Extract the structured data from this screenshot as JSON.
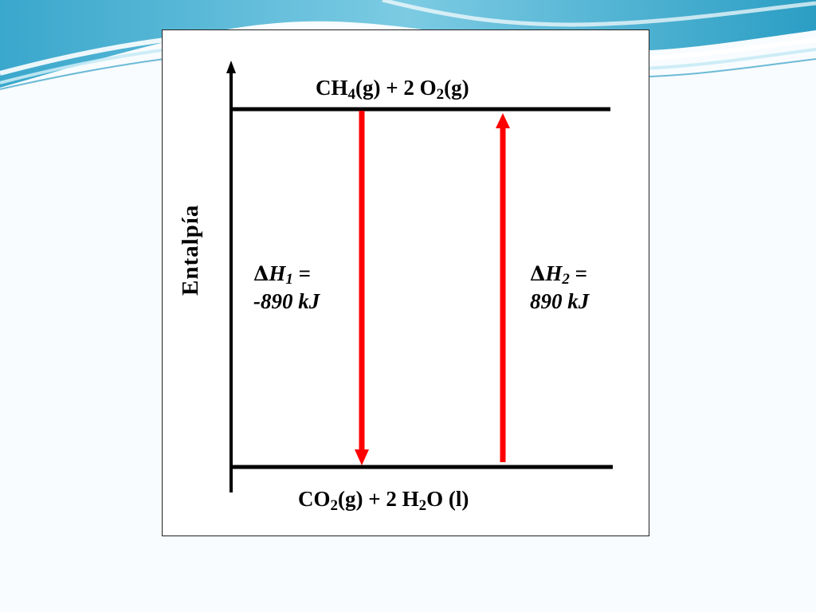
{
  "diagram": {
    "axis_label": "Entalpía",
    "upper_level": {
      "species_1": "CH",
      "species_1_sub": "4",
      "species_1_state": "(g) + 2 O",
      "species_2_sub": "2",
      "species_2_state": "(g)"
    },
    "lower_level": {
      "species_1": "CO",
      "species_1_sub": "2",
      "species_1_state": "(g) + 2 H",
      "species_2_sub": "2",
      "species_2_state": "O (l)"
    },
    "dh1": {
      "symbol": "Δ",
      "var": "H",
      "sub": "1",
      "eq": " =",
      "value": "-890 kJ",
      "direction": "down"
    },
    "dh2": {
      "symbol": "Δ",
      "var": "H",
      "sub": "2",
      "eq": " =",
      "value": "890 kJ",
      "direction": "up"
    },
    "colors": {
      "arrow": "#ff0000",
      "lines": "#000000",
      "panel_border": "#222222",
      "wave_dark": "#2b9ec4",
      "wave_light": "#9fd8ea",
      "background": "#f8fcfe"
    }
  }
}
